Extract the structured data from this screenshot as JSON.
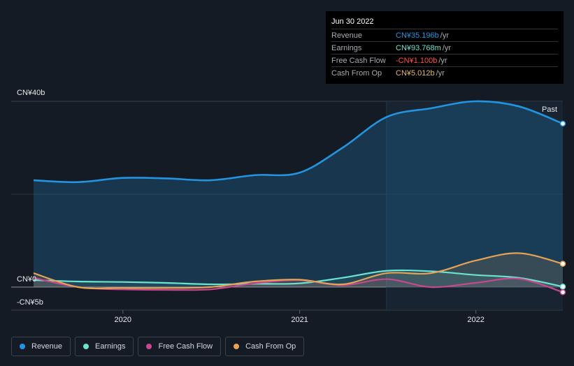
{
  "tooltip": {
    "date": "Jun 30 2022",
    "rows": [
      {
        "label": "Revenue",
        "value": "CN¥35.196b",
        "unit": "/yr",
        "color": "#2394df"
      },
      {
        "label": "Earnings",
        "value": "CN¥93.768m",
        "unit": "/yr",
        "color": "#6ce3cf"
      },
      {
        "label": "Free Cash Flow",
        "value": "-CN¥1.100b",
        "unit": "/yr",
        "color": "#ff4f4f"
      },
      {
        "label": "Cash From Op",
        "value": "CN¥5.012b",
        "unit": "/yr",
        "color": "#e6b86a"
      }
    ]
  },
  "past_label": "Past",
  "legend": [
    {
      "label": "Revenue",
      "color": "#2394df"
    },
    {
      "label": "Earnings",
      "color": "#6ce3cf"
    },
    {
      "label": "Free Cash Flow",
      "color": "#c7488e"
    },
    {
      "label": "Cash From Op",
      "color": "#e6a356"
    }
  ],
  "chart_data": {
    "type": "line",
    "ylabels": [
      "CN¥40b",
      "CN¥0",
      "-CN¥5b"
    ],
    "xticks": [
      "2020",
      "2021",
      "2022"
    ],
    "ylim": [
      -5,
      40
    ],
    "x_range": [
      "2019-06-30",
      "2022-06-30"
    ],
    "past_start": "2021-06-30",
    "series": [
      {
        "name": "Revenue",
        "color": "#2394df",
        "x": [
          "2019-06-30",
          "2019-09-30",
          "2019-12-31",
          "2020-03-31",
          "2020-06-30",
          "2020-09-30",
          "2020-12-31",
          "2021-03-31",
          "2021-06-30",
          "2021-09-30",
          "2021-12-31",
          "2022-03-31",
          "2022-06-30"
        ],
        "values": [
          23.0,
          22.6,
          23.5,
          23.4,
          23.0,
          24.1,
          24.6,
          30.0,
          36.6,
          38.5,
          40.0,
          38.9,
          35.196
        ]
      },
      {
        "name": "Earnings",
        "color": "#6ce3cf",
        "x": [
          "2019-06-30",
          "2019-09-30",
          "2019-12-31",
          "2020-03-31",
          "2020-06-30",
          "2020-09-30",
          "2020-12-31",
          "2021-03-31",
          "2021-06-30",
          "2021-09-30",
          "2021-12-31",
          "2022-03-31",
          "2022-06-30"
        ],
        "values": [
          1.5,
          1.2,
          1.1,
          0.9,
          0.6,
          0.7,
          0.8,
          2.0,
          3.5,
          3.4,
          2.6,
          2.0,
          0.094
        ]
      },
      {
        "name": "Free Cash Flow",
        "color": "#c7488e",
        "x": [
          "2019-06-30",
          "2019-09-30",
          "2019-12-31",
          "2020-03-31",
          "2020-06-30",
          "2020-09-30",
          "2020-12-31",
          "2021-03-31",
          "2021-06-30",
          "2021-09-30",
          "2021-12-31",
          "2022-03-31",
          "2022-06-30"
        ],
        "values": [
          2.0,
          0.0,
          -0.5,
          -0.6,
          -0.5,
          0.8,
          1.5,
          0.4,
          1.7,
          0.0,
          0.9,
          1.8,
          -1.1
        ]
      },
      {
        "name": "Cash From Op",
        "color": "#e6a356",
        "x": [
          "2019-06-30",
          "2019-09-30",
          "2019-12-31",
          "2020-03-31",
          "2020-06-30",
          "2020-09-30",
          "2020-12-31",
          "2021-03-31",
          "2021-06-30",
          "2021-09-30",
          "2021-12-31",
          "2022-03-31",
          "2022-06-30"
        ],
        "values": [
          3.0,
          0.0,
          -0.2,
          -0.2,
          0.0,
          1.2,
          1.6,
          0.6,
          3.0,
          3.0,
          5.7,
          7.3,
          5.012
        ]
      }
    ]
  }
}
